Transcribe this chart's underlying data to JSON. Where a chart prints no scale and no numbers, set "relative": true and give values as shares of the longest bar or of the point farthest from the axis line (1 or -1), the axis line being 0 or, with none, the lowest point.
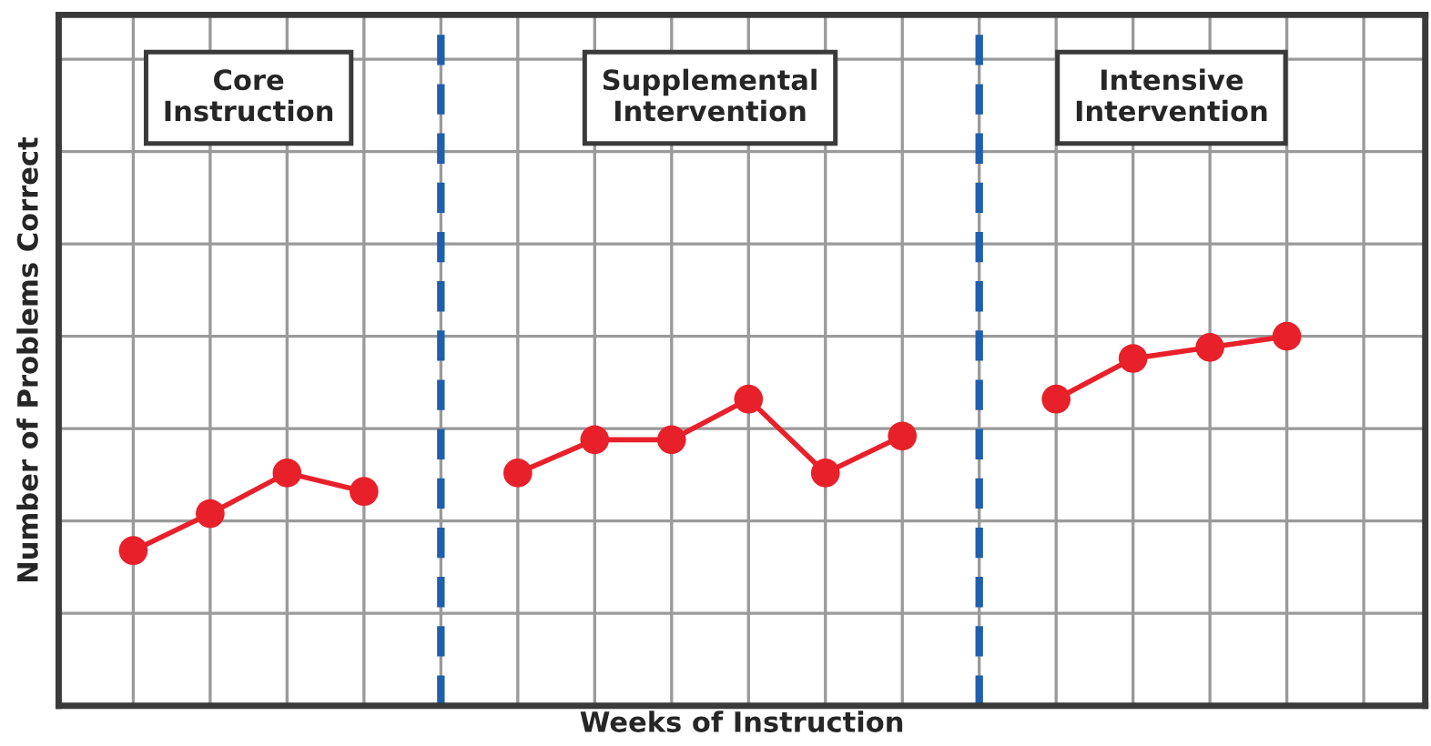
{
  "chart_data": {
    "type": "line",
    "relative": true,
    "xlabel": "Weeks of Instruction",
    "ylabel": "Number of Problems Correct",
    "categories": [
      null,
      null,
      null,
      null,
      null,
      null,
      null,
      null,
      null,
      null,
      null,
      null,
      null,
      null,
      null,
      null,
      null
    ],
    "series": [
      {
        "color": "#e8202a",
        "values": [
          0.42,
          0.52,
          0.63,
          0.58,
          null,
          null,
          null,
          null,
          null,
          null,
          null,
          null,
          null,
          null,
          null,
          null,
          null
        ]
      },
      {
        "color": "#e8202a",
        "values": [
          null,
          null,
          null,
          null,
          null,
          0.63,
          0.72,
          0.72,
          0.83,
          0.63,
          0.73,
          null,
          null,
          null,
          null,
          null,
          null
        ]
      },
      {
        "color": "#e8202a",
        "values": [
          null,
          null,
          null,
          null,
          null,
          null,
          null,
          null,
          null,
          null,
          null,
          null,
          0.83,
          0.94,
          0.97,
          1,
          null
        ]
      }
    ],
    "annotations": [
      "Core\nInstruction",
      "Supplemental\nIntervention",
      "Intensive\nIntervention"
    ],
    "marker": "circle",
    "line_style": "solid",
    "grid": true,
    "legend": false,
    "tick_labels": false
  }
}
